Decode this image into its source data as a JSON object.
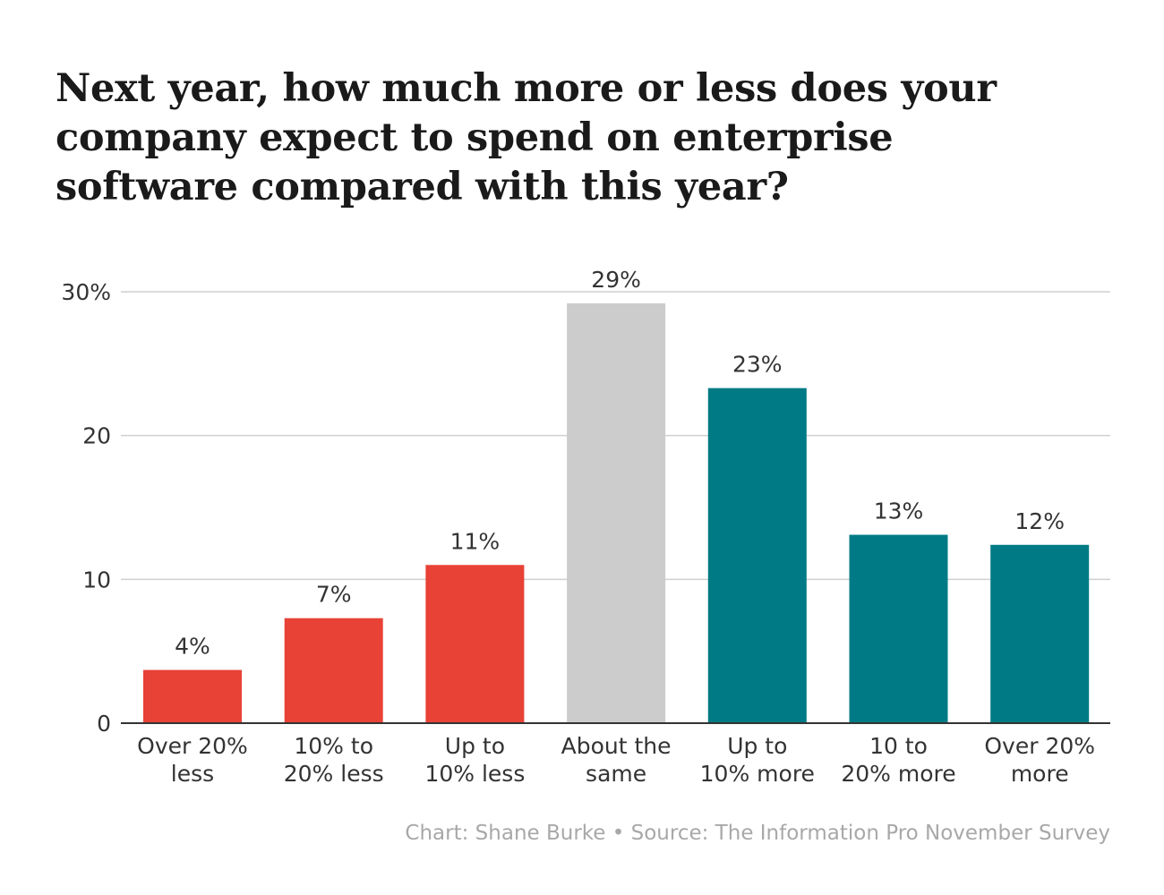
{
  "chart_data": {
    "type": "bar",
    "title_lines": [
      "Next year, how much more or less does your",
      "company expect to spend on enterprise",
      "software compared with this year?"
    ],
    "categories": [
      [
        "Over 20%",
        "less"
      ],
      [
        "10% to",
        "20% less"
      ],
      [
        "Up to",
        "10% less"
      ],
      [
        "About the",
        "same"
      ],
      [
        "Up to",
        "10% more"
      ],
      [
        "10 to",
        "20% more"
      ],
      [
        "Over 20%",
        "more"
      ]
    ],
    "values": [
      3.7,
      7.3,
      11,
      29.2,
      23.3,
      13.1,
      12.4
    ],
    "data_labels": [
      "4%",
      "7%",
      "11%",
      "29%",
      "23%",
      "13%",
      "12%"
    ],
    "colors": [
      "#e84136",
      "#e84136",
      "#e84136",
      "#cccccc",
      "#007b85",
      "#007b85",
      "#007b85"
    ],
    "ylim": [
      0,
      30
    ],
    "yticks": [
      0,
      10,
      20,
      30
    ],
    "ytick_labels": [
      "0",
      "10",
      "20",
      "30%"
    ],
    "grid": true,
    "xlabel": "",
    "ylabel": "",
    "source": "Chart: Shane Burke • Source: The Information Pro November Survey"
  }
}
